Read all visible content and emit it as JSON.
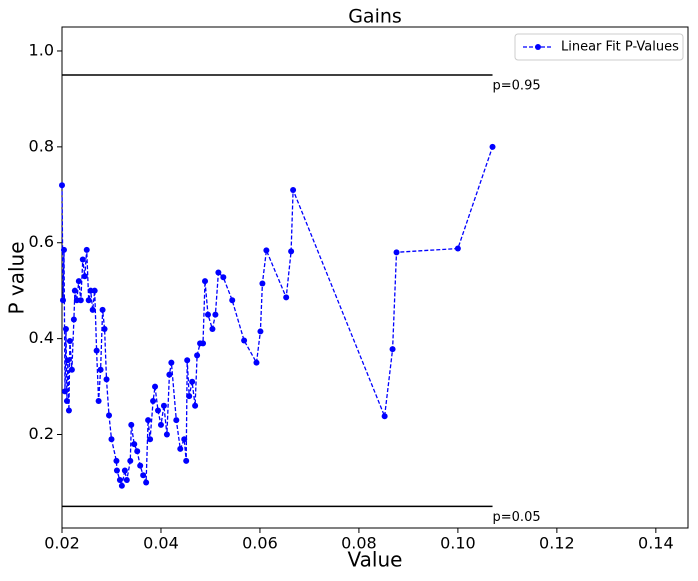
{
  "chart_data": {
    "type": "line",
    "title": "Gains",
    "xlabel": "Value",
    "ylabel": "P value",
    "xlim": [
      0.02,
      0.1465
    ],
    "ylim": [
      0.005,
      1.05
    ],
    "xticks": [
      {
        "value": 0.02,
        "label": "0.02"
      },
      {
        "value": 0.04,
        "label": "0.04"
      },
      {
        "value": 0.06,
        "label": "0.06"
      },
      {
        "value": 0.08,
        "label": "0.08"
      },
      {
        "value": 0.1,
        "label": "0.10"
      },
      {
        "value": 0.12,
        "label": "0.12"
      },
      {
        "value": 0.14,
        "label": "0.14"
      }
    ],
    "yticks": [
      0.2,
      0.4,
      0.6,
      0.8,
      {
        "value": 1.0,
        "label": "1.0"
      }
    ],
    "legend": "upper right",
    "x": [
      0.02,
      0.0202,
      0.0204,
      0.0206,
      0.0208,
      0.021,
      0.0212,
      0.0214,
      0.0216,
      0.022,
      0.0224,
      0.0226,
      0.023,
      0.0234,
      0.0238,
      0.0242,
      0.0246,
      0.025,
      0.0254,
      0.0258,
      0.0262,
      0.0266,
      0.027,
      0.0274,
      0.0278,
      0.0282,
      0.0286,
      0.029,
      0.0295,
      0.03,
      0.031,
      0.0311,
      0.0317,
      0.0321,
      0.0327,
      0.0331,
      0.0338,
      0.034,
      0.0346,
      0.0352,
      0.0358,
      0.0364,
      0.037,
      0.0374,
      0.0378,
      0.0384,
      0.0388,
      0.0394,
      0.04,
      0.0406,
      0.0412,
      0.0417,
      0.0421,
      0.0431,
      0.0439,
      0.0447,
      0.0451,
      0.0453,
      0.0457,
      0.0463,
      0.0469,
      0.0473,
      0.0479,
      0.0485,
      0.0489,
      0.0495,
      0.0504,
      0.051,
      0.0516,
      0.0526,
      0.0544,
      0.0568,
      0.0593,
      0.0601,
      0.0605,
      0.0613,
      0.0653,
      0.0663,
      0.0667,
      0.0852,
      0.0868,
      0.0876,
      0.1,
      0.107
    ],
    "series": [
      {
        "name": "Linear Fit P-Values",
        "color": "#0000ff",
        "linestyle": "dashed",
        "values": [
          0.72,
          0.48,
          0.585,
          0.29,
          0.42,
          0.27,
          0.355,
          0.25,
          0.395,
          0.335,
          0.44,
          0.5,
          0.48,
          0.52,
          0.48,
          0.565,
          0.53,
          0.585,
          0.48,
          0.5,
          0.46,
          0.5,
          0.375,
          0.27,
          0.335,
          0.46,
          0.42,
          0.315,
          0.24,
          0.19,
          0.145,
          0.125,
          0.105,
          0.093,
          0.125,
          0.105,
          0.145,
          0.22,
          0.18,
          0.165,
          0.135,
          0.115,
          0.1,
          0.23,
          0.19,
          0.27,
          0.3,
          0.25,
          0.22,
          0.26,
          0.2,
          0.325,
          0.35,
          0.23,
          0.17,
          0.19,
          0.145,
          0.355,
          0.28,
          0.31,
          0.26,
          0.365,
          0.39,
          0.39,
          0.52,
          0.45,
          0.42,
          0.45,
          0.538,
          0.528,
          0.48,
          0.396,
          0.35,
          0.415,
          0.515,
          0.584,
          0.486,
          0.582,
          0.71,
          0.238,
          0.378,
          0.58,
          0.588,
          0.8
        ]
      }
    ],
    "reference_lines": [
      {
        "y": 0.95,
        "label": "p=0.95"
      },
      {
        "y": 0.05,
        "label": "p=0.05"
      }
    ]
  }
}
